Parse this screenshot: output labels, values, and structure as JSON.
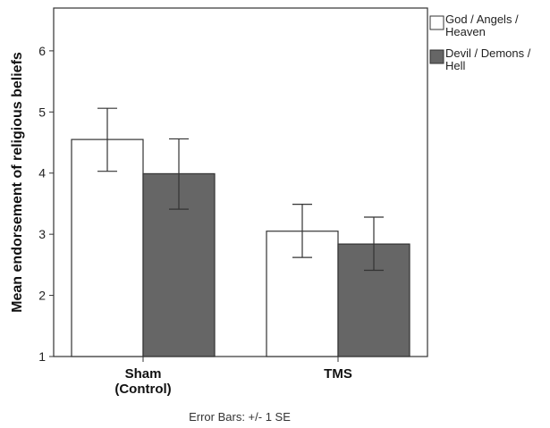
{
  "chart_data": {
    "type": "bar",
    "categories": [
      "Sham\n(Control)",
      "TMS"
    ],
    "ylabel": "Mean endorsement of religious beliefs",
    "xlabel": "",
    "ylim": [
      1,
      6.7
    ],
    "yticks": [
      1,
      2,
      3,
      4,
      5,
      6
    ],
    "grid": false,
    "legend_position": "right",
    "series": [
      {
        "name": "God / Angels / Heaven",
        "color": "#ffffff",
        "values": [
          4.55,
          3.05
        ],
        "error_low": [
          4.03,
          2.62
        ],
        "error_high": [
          5.06,
          3.49
        ]
      },
      {
        "name": "Devil / Demons / Hell",
        "color": "#666666",
        "values": [
          3.99,
          2.84
        ],
        "error_low": [
          3.41,
          2.41
        ],
        "error_high": [
          4.56,
          3.28
        ]
      }
    ],
    "note": "Error Bars: +/- 1 SE"
  },
  "legend": {
    "items": [
      {
        "lines": [
          "God / Angels /",
          "Heaven"
        ],
        "color": "#ffffff"
      },
      {
        "lines": [
          "Devil / Demons /",
          "Hell"
        ],
        "color": "#666666"
      }
    ]
  }
}
